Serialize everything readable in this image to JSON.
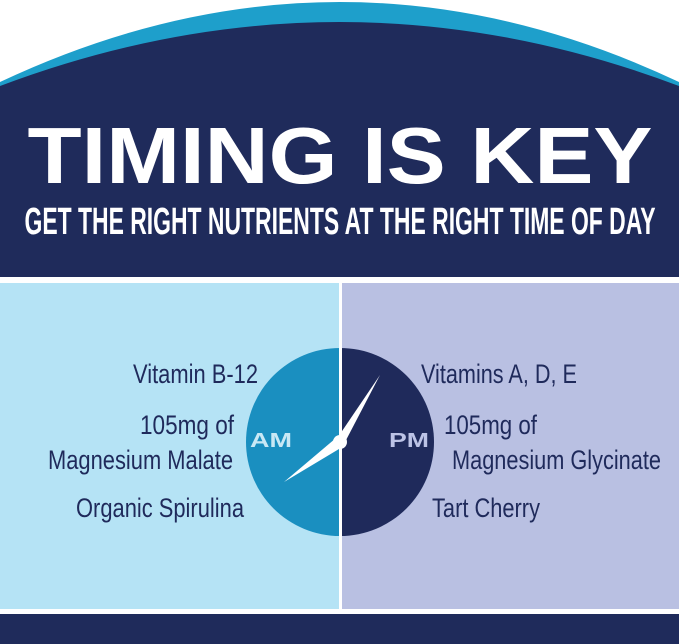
{
  "header": {
    "title": "TIMING IS KEY",
    "subtitle": "GET THE RIGHT NUTRIENTS AT THE RIGHT TIME OF DAY"
  },
  "am": {
    "label": "AM",
    "items": [
      "Vitamin B-12",
      "105mg of",
      "Magnesium Malate",
      "Organic Spirulina"
    ]
  },
  "pm": {
    "label": "PM",
    "items": [
      "Vitamins A, D, E",
      "105mg of",
      "Magnesium Glycinate",
      "Tart Cherry"
    ]
  },
  "colors": {
    "navy": "#1f2b5b",
    "accent_blue": "#1e9fcb",
    "am_panel": "#b5e3f5",
    "pm_panel": "#b9c0e2",
    "am_clock": "#1a8fc0",
    "pm_clock": "#1f2a5b"
  },
  "clock": {
    "hour_hand": "8 o'clock direction",
    "minute_hand": "1 o'clock direction"
  }
}
